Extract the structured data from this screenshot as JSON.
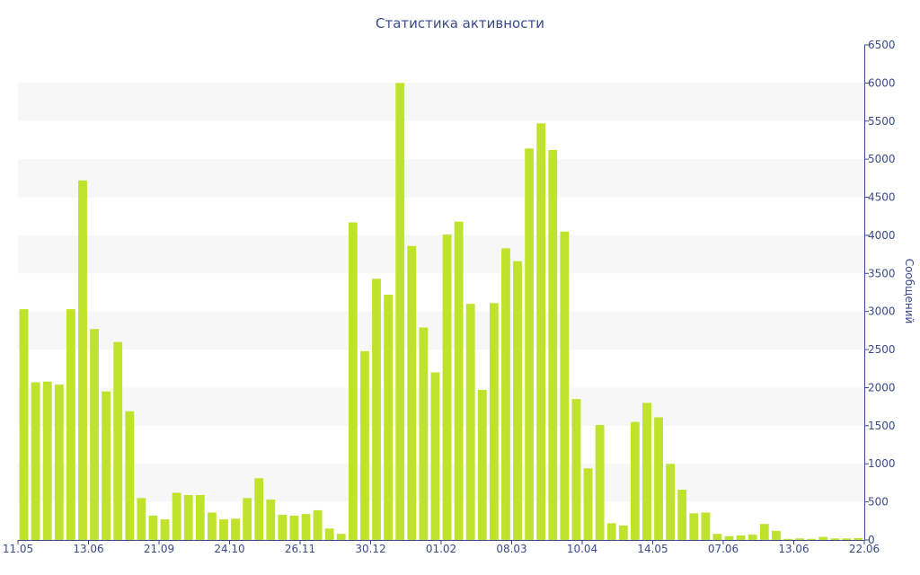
{
  "chart_data": {
    "type": "bar",
    "title": "Статистика активности",
    "xlabel": "",
    "ylabel": "Сообщений",
    "ylim": [
      0,
      6500
    ],
    "yticks": [
      0,
      500,
      1000,
      1500,
      2000,
      2500,
      3000,
      3500,
      4000,
      4500,
      5000,
      5500,
      6000,
      6500
    ],
    "y_axis_side": "right",
    "grid": "alternating horizontal bands",
    "x_tick_labels": [
      "11.05",
      "13.06",
      "21.09",
      "24.10",
      "26.11",
      "30.12",
      "01.02",
      "08.03",
      "10.04",
      "14.05",
      "07.06",
      "13.06",
      "22.06"
    ],
    "values": [
      3030,
      2070,
      2080,
      2040,
      3030,
      4720,
      2770,
      1950,
      2600,
      1690,
      550,
      320,
      270,
      620,
      590,
      590,
      360,
      270,
      280,
      550,
      810,
      530,
      330,
      320,
      340,
      390,
      150,
      80,
      4170,
      2480,
      3430,
      3220,
      6000,
      3860,
      2790,
      2200,
      4010,
      4180,
      3100,
      1970,
      3110,
      3830,
      3660,
      5140,
      5470,
      5120,
      4050,
      1850,
      940,
      1510,
      220,
      190,
      1550,
      1800,
      1610,
      1000,
      660,
      350,
      360,
      80,
      50,
      60,
      70,
      210,
      120,
      15,
      20,
      15,
      40,
      20,
      20,
      25
    ],
    "colors": {
      "bar": "#bfe22c",
      "band": "#f7f7f7",
      "axis": "#3a4a8a"
    }
  }
}
